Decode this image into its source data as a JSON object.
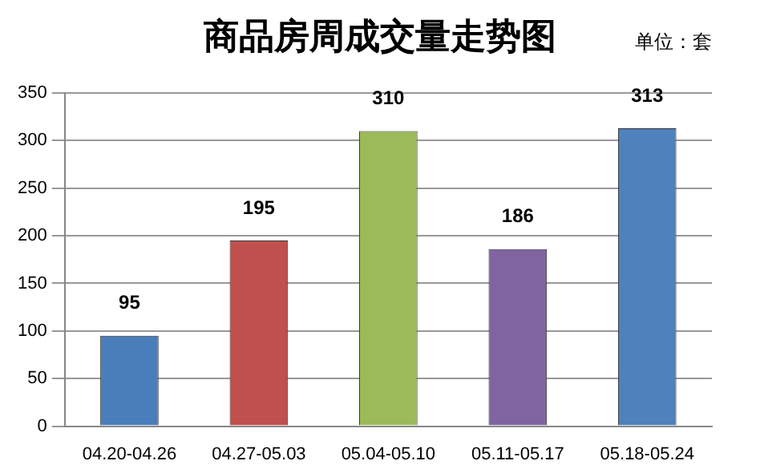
{
  "chart_data": {
    "type": "bar",
    "title": "商品房周成交量走势图",
    "annotations": [
      "单位：套"
    ],
    "categories": [
      "04.20-04.26",
      "04.27-05.03",
      "05.04-05.10",
      "05.11-05.17",
      "05.18-05.24"
    ],
    "values": [
      95,
      195,
      310,
      186,
      313
    ],
    "colors": [
      "#4a7ebb",
      "#c0504d",
      "#9bbb59",
      "#8064a2",
      "#4f81bd"
    ],
    "ylim": [
      0,
      350
    ],
    "yticks": [
      0,
      50,
      100,
      150,
      200,
      250,
      300,
      350
    ],
    "grid": "y",
    "data_labels": true,
    "legend": false
  }
}
